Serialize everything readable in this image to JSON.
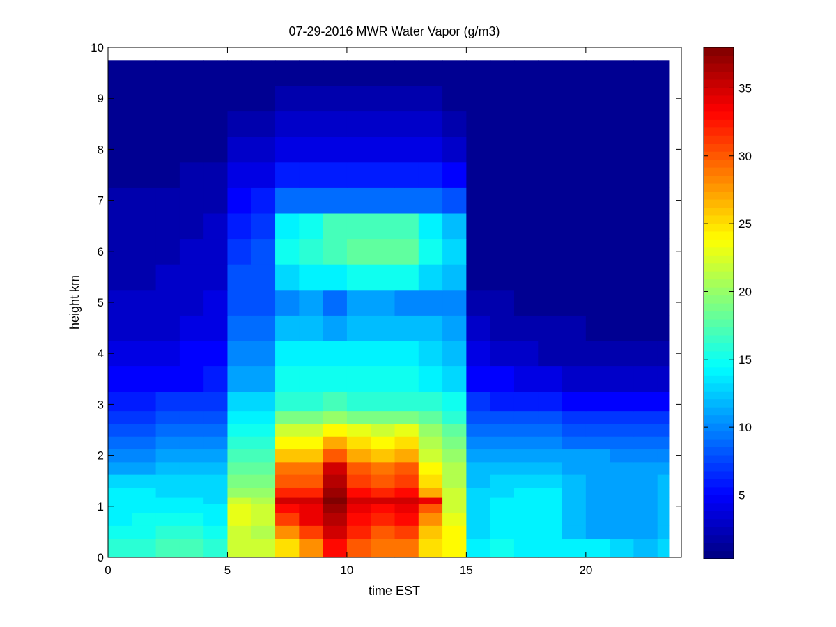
{
  "chart_data": {
    "type": "heatmap",
    "title": "07-29-2016 MWR Water Vapor (g/m3)",
    "xlabel": "time EST",
    "ylabel": "height km",
    "xlim": [
      0,
      24
    ],
    "ylim": [
      0,
      10
    ],
    "x_ticks": [
      0,
      5,
      10,
      15,
      20
    ],
    "y_ticks": [
      0,
      1,
      2,
      3,
      4,
      5,
      6,
      7,
      8,
      9,
      10
    ],
    "colorbar": {
      "colormap": "jet",
      "range": [
        0.3,
        38
      ],
      "ticks": [
        5,
        10,
        15,
        20,
        25,
        30,
        35
      ]
    },
    "x": [
      0,
      1,
      2,
      3,
      4,
      5,
      6,
      7,
      8,
      9,
      10,
      11,
      12,
      13,
      14,
      15,
      16,
      17,
      18,
      19,
      20,
      21,
      22,
      23
    ],
    "y": [
      0.25,
      0.5,
      0.75,
      1.0,
      1.1,
      1.25,
      1.5,
      1.75,
      2.0,
      2.25,
      2.5,
      2.75,
      3.0,
      3.5,
      4.0,
      4.5,
      5.0,
      5.5,
      6.0,
      6.5,
      7.0,
      7.5,
      8.0,
      8.5,
      9.0,
      9.5
    ],
    "z": [
      [
        16,
        16,
        17,
        17,
        16,
        22,
        22,
        25,
        28,
        33,
        30,
        29,
        29,
        25,
        24,
        14,
        15,
        14,
        14,
        14,
        14,
        13,
        12,
        13
      ],
      [
        15,
        15,
        16,
        16,
        15,
        22,
        21,
        28,
        31,
        35,
        32,
        30,
        31,
        26,
        24,
        13,
        14,
        14,
        14,
        12,
        11,
        11,
        11,
        12
      ],
      [
        14,
        15,
        15,
        15,
        14,
        23,
        22,
        31,
        34,
        36,
        33,
        32,
        33,
        28,
        23,
        13,
        14,
        14,
        14,
        12,
        11,
        11,
        11,
        12
      ],
      [
        14,
        14,
        14,
        14,
        14,
        23,
        22,
        33,
        34,
        37,
        34,
        33,
        34,
        30,
        22,
        13,
        14,
        14,
        14,
        12,
        11,
        11,
        11,
        12
      ],
      [
        14,
        14,
        14,
        14,
        13,
        22,
        21,
        35,
        35,
        38,
        35,
        35,
        35,
        34,
        22,
        13,
        14,
        14,
        14,
        12,
        11,
        11,
        11,
        12
      ],
      [
        14,
        14,
        13,
        13,
        13,
        20,
        20,
        32,
        32,
        37,
        33,
        32,
        33,
        27,
        22,
        13,
        13,
        14,
        14,
        12,
        11,
        11,
        11,
        12
      ],
      [
        13,
        13,
        13,
        13,
        13,
        19,
        19,
        30,
        30,
        36,
        31,
        30,
        31,
        25,
        21,
        12,
        13,
        13,
        13,
        12,
        11,
        11,
        11,
        12
      ],
      [
        11,
        11,
        12,
        12,
        12,
        18,
        18,
        29,
        29,
        35,
        30,
        29,
        30,
        24,
        21,
        12,
        12,
        12,
        12,
        11,
        11,
        11,
        11,
        11
      ],
      [
        10,
        10,
        11,
        11,
        11,
        17,
        17,
        26,
        26,
        30,
        27,
        26,
        27,
        22,
        20,
        11,
        11,
        11,
        11,
        11,
        11,
        10,
        10,
        10
      ],
      [
        9,
        9,
        10,
        10,
        10,
        16,
        16,
        24,
        24,
        27,
        25,
        24,
        25,
        21,
        19,
        10,
        10,
        10,
        10,
        9,
        9,
        9,
        9,
        9
      ],
      [
        8,
        8,
        9,
        9,
        9,
        15,
        15,
        22,
        22,
        24,
        23,
        22,
        23,
        20,
        18,
        9,
        9,
        9,
        9,
        8,
        8,
        8,
        8,
        8
      ],
      [
        7,
        7,
        8,
        8,
        8,
        14,
        14,
        19,
        19,
        20,
        19,
        19,
        19,
        18,
        16,
        8,
        8,
        8,
        8,
        7,
        7,
        7,
        7,
        7
      ],
      [
        6,
        6,
        7,
        7,
        7,
        13,
        13,
        16,
        16,
        17,
        16,
        16,
        16,
        16,
        15,
        7,
        6,
        6,
        6,
        5,
        5,
        5,
        5,
        5
      ],
      [
        5,
        5,
        5,
        5,
        6,
        11,
        11,
        15,
        15,
        15,
        15,
        15,
        15,
        14,
        13,
        5,
        5,
        4,
        4,
        3,
        3,
        3,
        3,
        3
      ],
      [
        4,
        4,
        4,
        5,
        5,
        10,
        10,
        14,
        14,
        14,
        14,
        14,
        14,
        13,
        12,
        4,
        3,
        3,
        2,
        2,
        2,
        2,
        2,
        2
      ],
      [
        3,
        3,
        3,
        4,
        4,
        9,
        9,
        12,
        12,
        11,
        12,
        12,
        12,
        12,
        11,
        3,
        2,
        2,
        2,
        2,
        1,
        1,
        1,
        1
      ],
      [
        3,
        3,
        3,
        3,
        4,
        8,
        8,
        10,
        11,
        9,
        11,
        11,
        10,
        10,
        10,
        2,
        2,
        1,
        1,
        1,
        1,
        1,
        1,
        1
      ],
      [
        2,
        2,
        3,
        3,
        3,
        8,
        8,
        13,
        14,
        14,
        15,
        15,
        15,
        13,
        12,
        1,
        1,
        1,
        1,
        1,
        1,
        1,
        1,
        1
      ],
      [
        2,
        2,
        2,
        3,
        3,
        7,
        8,
        15,
        16,
        17,
        18,
        18,
        18,
        15,
        13,
        1,
        1,
        1,
        1,
        1,
        1,
        1,
        1,
        1
      ],
      [
        2,
        2,
        2,
        2,
        3,
        6,
        7,
        14,
        15,
        17,
        17,
        17,
        17,
        14,
        12,
        1,
        1,
        1,
        1,
        1,
        1,
        1,
        1,
        1
      ],
      [
        2,
        2,
        2,
        2,
        2,
        5,
        6,
        9,
        9,
        9,
        9,
        9,
        9,
        9,
        8,
        1,
        1,
        1,
        1,
        1,
        1,
        1,
        1,
        1
      ],
      [
        1,
        1,
        1,
        2,
        2,
        4,
        4,
        6,
        6,
        6,
        6,
        6,
        6,
        6,
        5,
        1,
        1,
        1,
        1,
        1,
        1,
        1,
        1,
        1
      ],
      [
        1,
        1,
        1,
        1,
        1,
        3,
        3,
        4,
        4,
        4,
        4,
        4,
        4,
        4,
        3,
        1,
        1,
        1,
        1,
        1,
        1,
        1,
        1,
        1
      ],
      [
        1,
        1,
        1,
        1,
        1,
        2,
        2,
        3,
        3,
        3,
        3,
        3,
        3,
        3,
        2,
        1,
        1,
        1,
        1,
        1,
        1,
        1,
        1,
        1
      ],
      [
        1,
        1,
        1,
        1,
        1,
        1,
        1,
        2,
        2,
        2,
        2,
        2,
        2,
        2,
        1,
        1,
        1,
        1,
        1,
        1,
        1,
        1,
        1,
        1
      ],
      [
        1,
        1,
        1,
        1,
        1,
        1,
        1,
        1,
        1,
        1,
        1,
        1,
        1,
        1,
        1,
        1,
        1,
        1,
        1,
        1,
        1,
        1,
        1,
        1
      ]
    ]
  }
}
